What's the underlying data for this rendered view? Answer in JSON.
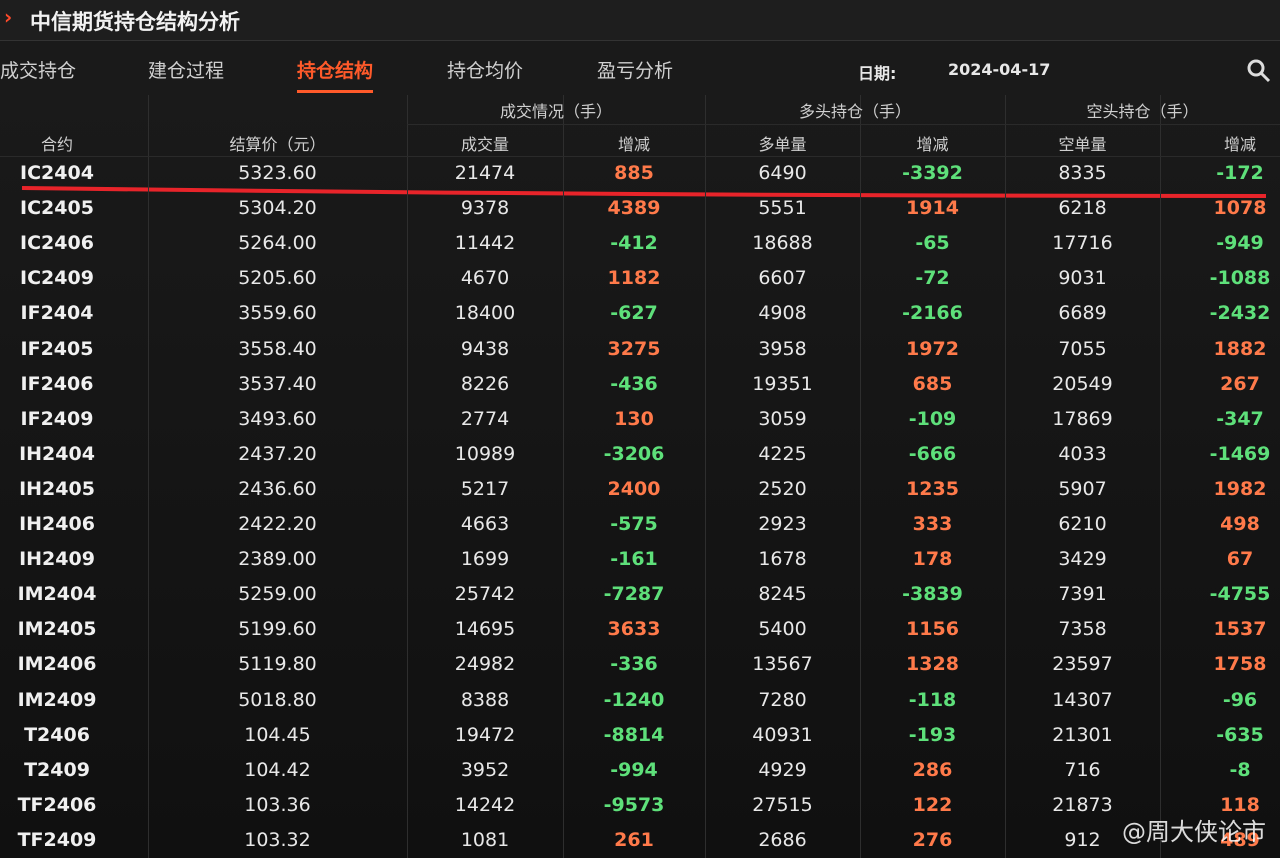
{
  "header": {
    "title": "中信期货持仓结构分析"
  },
  "tabs": [
    "成交持仓",
    "建仓过程",
    "持仓结构",
    "持仓均价",
    "盈亏分析"
  ],
  "active_tab": 2,
  "date_label": "日期:",
  "date": "2024-04-17",
  "table": {
    "groups": [
      "成交情况（手）",
      "多头持仓（手）",
      "空头持仓（手）"
    ],
    "columns": [
      "合约",
      "结算价（元）",
      "成交量",
      "增减",
      "多单量",
      "增减",
      "空单量",
      "增减"
    ],
    "rows": [
      [
        "IC2404",
        "5323.60",
        "21474",
        "885",
        "6490",
        "-3392",
        "8335",
        "-172"
      ],
      [
        "IC2405",
        "5304.20",
        "9378",
        "4389",
        "5551",
        "1914",
        "6218",
        "1078"
      ],
      [
        "IC2406",
        "5264.00",
        "11442",
        "-412",
        "18688",
        "-65",
        "17716",
        "-949"
      ],
      [
        "IC2409",
        "5205.60",
        "4670",
        "1182",
        "6607",
        "-72",
        "9031",
        "-1088"
      ],
      [
        "IF2404",
        "3559.60",
        "18400",
        "-627",
        "4908",
        "-2166",
        "6689",
        "-2432"
      ],
      [
        "IF2405",
        "3558.40",
        "9438",
        "3275",
        "3958",
        "1972",
        "7055",
        "1882"
      ],
      [
        "IF2406",
        "3537.40",
        "8226",
        "-436",
        "19351",
        "685",
        "20549",
        "267"
      ],
      [
        "IF2409",
        "3493.60",
        "2774",
        "130",
        "3059",
        "-109",
        "17869",
        "-347"
      ],
      [
        "IH2404",
        "2437.20",
        "10989",
        "-3206",
        "4225",
        "-666",
        "4033",
        "-1469"
      ],
      [
        "IH2405",
        "2436.60",
        "5217",
        "2400",
        "2520",
        "1235",
        "5907",
        "1982"
      ],
      [
        "IH2406",
        "2422.20",
        "4663",
        "-575",
        "2923",
        "333",
        "6210",
        "498"
      ],
      [
        "IH2409",
        "2389.00",
        "1699",
        "-161",
        "1678",
        "178",
        "3429",
        "67"
      ],
      [
        "IM2404",
        "5259.00",
        "25742",
        "-7287",
        "8245",
        "-3839",
        "7391",
        "-4755"
      ],
      [
        "IM2405",
        "5199.60",
        "14695",
        "3633",
        "5400",
        "1156",
        "7358",
        "1537"
      ],
      [
        "IM2406",
        "5119.80",
        "24982",
        "-336",
        "13567",
        "1328",
        "23597",
        "1758"
      ],
      [
        "IM2409",
        "5018.80",
        "8388",
        "-1240",
        "7280",
        "-118",
        "14307",
        "-96"
      ],
      [
        "T2406",
        "104.45",
        "19472",
        "-8814",
        "40931",
        "-193",
        "21301",
        "-635"
      ],
      [
        "T2409",
        "104.42",
        "3952",
        "-994",
        "4929",
        "286",
        "716",
        "-8"
      ],
      [
        "TF2406",
        "103.36",
        "14242",
        "-9573",
        "27515",
        "122",
        "21873",
        "118"
      ],
      [
        "TF2409",
        "103.32",
        "1081",
        "261",
        "2686",
        "276",
        "912",
        "489"
      ]
    ]
  },
  "watermark": "@周大侠论市"
}
